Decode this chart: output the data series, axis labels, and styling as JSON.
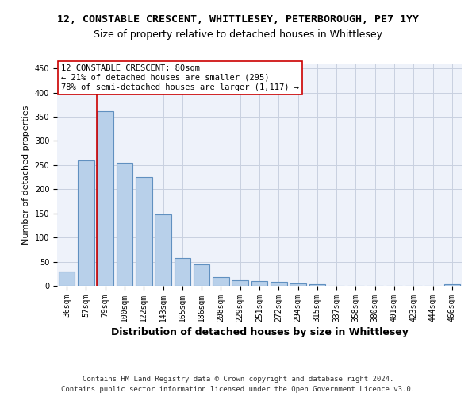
{
  "title": "12, CONSTABLE CRESCENT, WHITTLESEY, PETERBOROUGH, PE7 1YY",
  "subtitle": "Size of property relative to detached houses in Whittlesey",
  "xlabel": "Distribution of detached houses by size in Whittlesey",
  "ylabel": "Number of detached properties",
  "bar_labels": [
    "36sqm",
    "57sqm",
    "79sqm",
    "100sqm",
    "122sqm",
    "143sqm",
    "165sqm",
    "186sqm",
    "208sqm",
    "229sqm",
    "251sqm",
    "272sqm",
    "294sqm",
    "315sqm",
    "337sqm",
    "358sqm",
    "380sqm",
    "401sqm",
    "423sqm",
    "444sqm",
    "466sqm"
  ],
  "bar_values": [
    30,
    260,
    362,
    255,
    225,
    148,
    57,
    45,
    18,
    12,
    10,
    8,
    5,
    4,
    0,
    0,
    0,
    0,
    0,
    0,
    4
  ],
  "bar_color": "#b8d0ea",
  "bar_edge_color": "#6090c0",
  "bar_linewidth": 0.8,
  "vline_x_index": 2,
  "vline_color": "#cc0000",
  "annotation_line1": "12 CONSTABLE CRESCENT: 80sqm",
  "annotation_line2": "← 21% of detached houses are smaller (295)",
  "annotation_line3": "78% of semi-detached houses are larger (1,117) →",
  "annotation_box_edgecolor": "#cc0000",
  "ylim": [
    0,
    460
  ],
  "yticks": [
    0,
    50,
    100,
    150,
    200,
    250,
    300,
    350,
    400,
    450
  ],
  "background_color": "#eef2fa",
  "footer_line1": "Contains HM Land Registry data © Crown copyright and database right 2024.",
  "footer_line2": "Contains public sector information licensed under the Open Government Licence v3.0.",
  "grid_color": "#c8d0e0",
  "title_fontsize": 9.5,
  "subtitle_fontsize": 9,
  "xlabel_fontsize": 9,
  "ylabel_fontsize": 8,
  "tick_fontsize": 7,
  "annotation_fontsize": 7.5,
  "footer_fontsize": 6.5
}
